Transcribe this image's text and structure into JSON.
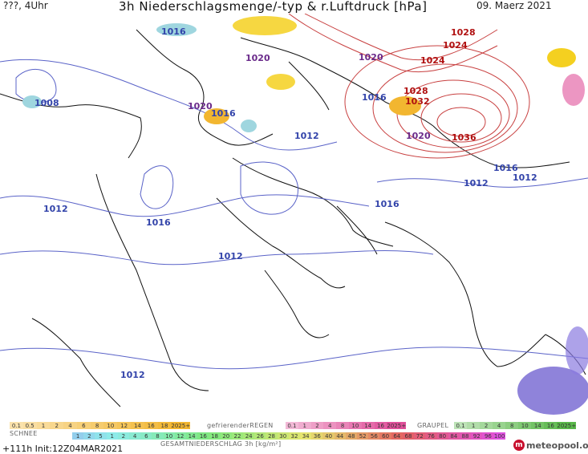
{
  "header": {
    "left_text": "???, 4Uhr",
    "title": "3h Niederschlagsmenge/-typ & r.Luftdruck [hPa]",
    "date": "09. Maerz 2021"
  },
  "map": {
    "pressure_labels": [
      {
        "text": "1016",
        "color": "#3344aa"
      },
      {
        "text": "1020",
        "color": "#6a2a8a"
      },
      {
        "text": "1020",
        "color": "#6a2a8a"
      },
      {
        "text": "1028",
        "color": "#b01010"
      },
      {
        "text": "1024",
        "color": "#b01010"
      },
      {
        "text": "1024",
        "color": "#b01010"
      },
      {
        "text": "1008",
        "color": "#3344aa"
      },
      {
        "text": "1020",
        "color": "#6a2a8a"
      },
      {
        "text": "1016",
        "color": "#3344aa"
      },
      {
        "text": "1016",
        "color": "#3344aa"
      },
      {
        "text": "1028",
        "color": "#b01010"
      },
      {
        "text": "1032",
        "color": "#b01010"
      },
      {
        "text": "1012",
        "color": "#3344aa"
      },
      {
        "text": "1020",
        "color": "#6a2a8a"
      },
      {
        "text": "1036",
        "color": "#b01010"
      },
      {
        "text": "1016",
        "color": "#3344aa"
      },
      {
        "text": "1012",
        "color": "#3344aa"
      },
      {
        "text": "1012",
        "color": "#3344aa"
      },
      {
        "text": "1012",
        "color": "#3344aa"
      },
      {
        "text": "1016",
        "color": "#3344aa"
      },
      {
        "text": "1016",
        "color": "#3344aa"
      },
      {
        "text": "1012",
        "color": "#3344aa"
      },
      {
        "text": "1012",
        "color": "#3344aa"
      }
    ]
  },
  "legend": {
    "rain_values": [
      "0.1",
      "0.5",
      "1",
      "2",
      "4",
      "6",
      "8",
      "10",
      "12",
      "14",
      "16",
      "18",
      "2025+"
    ],
    "freezing_label": "gefrierenderREGEN",
    "freezing_values": [
      "0.1",
      "1",
      "2",
      "4",
      "8",
      "10",
      "14",
      "16",
      "2025+"
    ],
    "graupel_label": "GRAUPEL",
    "graupel_values": [
      "0.1",
      "1",
      "2",
      "4",
      "8",
      "10",
      "14",
      "16",
      "2025+"
    ],
    "snow_label": "SCHNEE",
    "total_values": [
      "1",
      "2",
      "5",
      "1",
      "2",
      "4",
      "6",
      "8",
      "10",
      "12",
      "14",
      "16",
      "18",
      "20",
      "22",
      "24",
      "26",
      "28",
      "30",
      "32",
      "34",
      "36",
      "40",
      "44",
      "48",
      "52",
      "56",
      "60",
      "64",
      "68",
      "72",
      "76",
      "80",
      "84",
      "88",
      "92",
      "96",
      "100"
    ],
    "total_label": "GESAMTNIEDERSCHLAG 3h [kg/m²]",
    "colors": {
      "rain": "#f2b630",
      "freezing": "#e0509a",
      "graupel": "#5ab84a",
      "snow": "#9fd6df"
    }
  },
  "footer": {
    "run_info": "+111h Init:12Z04MAR2021",
    "brand": "meteopool.org"
  }
}
